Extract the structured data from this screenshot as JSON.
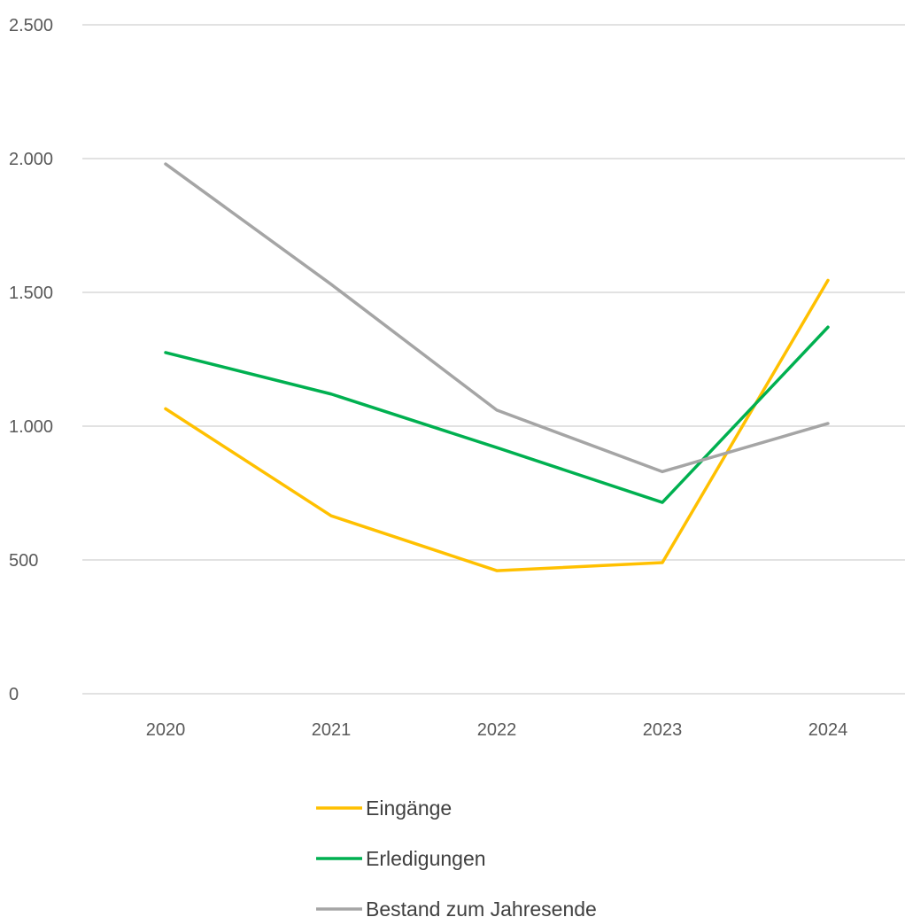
{
  "chart_data": {
    "type": "line",
    "categories": [
      "2020",
      "2021",
      "2022",
      "2023",
      "2024"
    ],
    "series": [
      {
        "name": "Eingänge",
        "color": "#FFC000",
        "values": [
          1065,
          665,
          460,
          490,
          1545
        ]
      },
      {
        "name": "Erledigungen",
        "color": "#00B050",
        "values": [
          1275,
          1120,
          920,
          715,
          1370
        ]
      },
      {
        "name": "Bestand zum Jahresende",
        "color": "#A5A5A5",
        "values": [
          1980,
          1530,
          1060,
          830,
          1010
        ]
      }
    ],
    "y_ticks": [
      {
        "value": 0,
        "label": "0"
      },
      {
        "value": 500,
        "label": "500"
      },
      {
        "value": 1000,
        "label": "1.000"
      },
      {
        "value": 1500,
        "label": "1.500"
      },
      {
        "value": 2000,
        "label": "2.000"
      },
      {
        "value": 2500,
        "label": "2.500"
      }
    ],
    "ylim": [
      0,
      2500
    ],
    "grid": true,
    "legend_position": "bottom",
    "gridline_color": "#D9D9D9"
  }
}
